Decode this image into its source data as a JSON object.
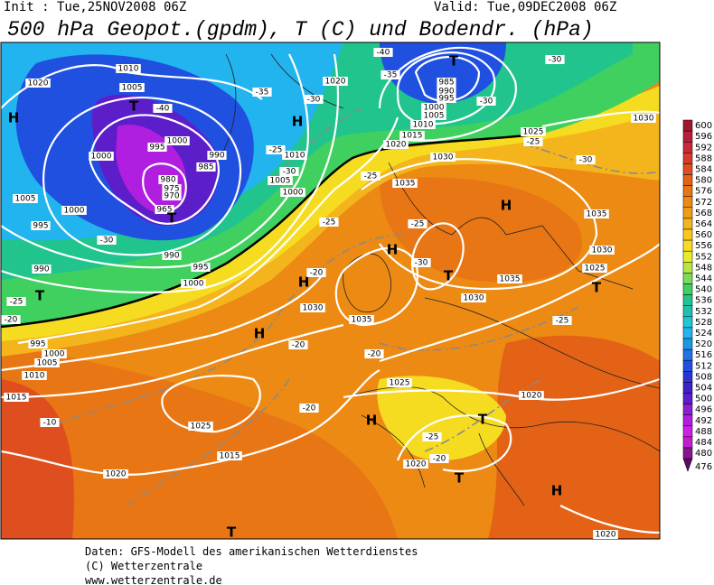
{
  "header": {
    "init": "Init : Tue,25NOV2008 06Z",
    "valid": "Valid: Tue,09DEC2008 06Z",
    "title": "500 hPa Geopot.(gpdm), T (C) und Bodendr. (hPa)"
  },
  "map": {
    "labels": [
      "1010",
      "1005",
      "1020",
      "T",
      "-40",
      "H",
      "1000",
      "995",
      "990",
      "985",
      "1000",
      "980",
      "975",
      "970",
      "965",
      "T",
      "1005",
      "1000",
      "995",
      "-30",
      "990",
      "995",
      "990",
      "1000",
      "T",
      "-25",
      "-20",
      "995",
      "1000",
      "1005",
      "1010",
      "1015",
      "-10",
      "1025",
      "1020",
      "1015",
      "T",
      "H",
      "H",
      "-20",
      "1030",
      "-20",
      "-20",
      "H",
      "-35",
      "-30",
      "1020",
      "1010",
      "1005",
      "1000",
      "-25",
      "-30",
      "-25",
      "T",
      "-40",
      "-35",
      "985",
      "990",
      "995",
      "1000",
      "1005",
      "1010",
      "1015",
      "-30",
      "-30",
      "1020",
      "1025",
      "-25",
      "1030",
      "1030",
      "-30",
      "1035",
      "-25",
      "H",
      "1035",
      "-25",
      "H",
      "-30",
      "T",
      "1035",
      "1030",
      "1025",
      "T",
      "1030",
      "1035",
      "-25",
      "-20",
      "1025",
      "1020",
      "H",
      "T",
      "-25",
      "1020",
      "-20",
      "T",
      "H",
      "1020"
    ]
  },
  "legend": {
    "levels": [
      600,
      596,
      592,
      588,
      584,
      580,
      576,
      572,
      568,
      564,
      560,
      556,
      552,
      548,
      544,
      540,
      536,
      532,
      528,
      524,
      520,
      516,
      512,
      508,
      504,
      500,
      496,
      492,
      488,
      484,
      480,
      476
    ],
    "colors": [
      "#a0182e",
      "#b81e3a",
      "#c8283a",
      "#d63a2c",
      "#de4e1e",
      "#e46216",
      "#e87614",
      "#ec8a14",
      "#f09e18",
      "#f4b41c",
      "#f7c820",
      "#f6dc20",
      "#e6ec2a",
      "#b6e642",
      "#7cda58",
      "#40d060",
      "#20c48c",
      "#1ec0b2",
      "#1ec6d6",
      "#22b4ee",
      "#1e98e6",
      "#2074e6",
      "#2050e0",
      "#2a34d6",
      "#3c22c8",
      "#5c1ec8",
      "#8c1ed4",
      "#b01ee0",
      "#d01ee8",
      "#c41ecc",
      "#881492",
      "#5a0a6a"
    ]
  },
  "footer": {
    "lines": [
      "Daten: GFS-Modell des amerikanischen Wetterdienstes",
      "(C) Wetterzentrale",
      "www.wetterzentrale.de"
    ]
  }
}
